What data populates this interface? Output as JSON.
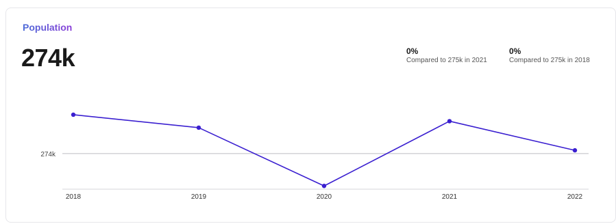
{
  "widget": {
    "title": "Population",
    "value": "274k",
    "comparisons": [
      {
        "pct": "0%",
        "text": "Compared to 275k in 2021"
      },
      {
        "pct": "0%",
        "text": "Compared to 275k in 2018"
      }
    ]
  },
  "chart_data": {
    "type": "line",
    "categories": [
      "2018",
      "2019",
      "2020",
      "2021",
      "2022"
    ],
    "values": [
      275.2,
      274.8,
      273.0,
      275.0,
      274.1
    ],
    "reference_line": {
      "value": 274,
      "label": "274k"
    },
    "ylim": [
      272.9,
      275.6
    ],
    "grid": false,
    "line_color": "#3a1fd0",
    "xlabel": "",
    "ylabel": ""
  }
}
